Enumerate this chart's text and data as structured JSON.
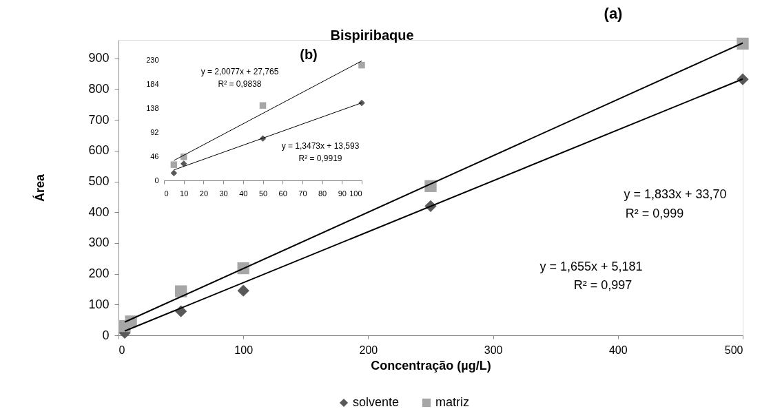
{
  "chart_data": [
    {
      "type": "scatter",
      "title": "Bispiribaque",
      "xlabel": "Concentração (µg/L)",
      "ylabel": "Área",
      "xlim": [
        0,
        500
      ],
      "xticks": [
        0,
        100,
        200,
        300,
        400,
        500
      ],
      "ylim": [
        0,
        960
      ],
      "yticks": [
        0,
        100,
        200,
        300,
        400,
        500,
        600,
        700,
        800,
        900
      ],
      "grid": false,
      "legend": "bottom",
      "annotations": [
        "(a)",
        "y = 1,833x + 33,70",
        "R² = 0,999",
        "y = 1,655x + 5,181",
        "R² = 0,997"
      ],
      "series": [
        {
          "name": "solvente",
          "color": "#595959",
          "marker": "diamond",
          "x": [
            5,
            10,
            50,
            100,
            250,
            500
          ],
          "values": [
            8,
            null,
            78,
            145,
            420,
            832
          ]
        },
        {
          "name": "matriz",
          "color": "#a6a6a6",
          "marker": "square",
          "x": [
            5,
            10,
            50,
            100,
            250,
            500
          ],
          "values": [
            30,
            45,
            143,
            218,
            485,
            948
          ]
        },
        {
          "type": "line",
          "color": "#000000",
          "x": [
            5,
            500
          ],
          "values": [
            14,
            833
          ]
        },
        {
          "type": "line",
          "color": "#000000",
          "x": [
            5,
            500
          ],
          "values": [
            43,
            950
          ]
        }
      ]
    },
    {
      "type": "scatter",
      "xlim": [
        0,
        100
      ],
      "xticks": [
        0,
        10,
        20,
        30,
        40,
        50,
        60,
        70,
        80,
        90,
        100
      ],
      "ylim": [
        0,
        230
      ],
      "yticks": [
        0,
        46,
        92,
        138,
        184,
        230
      ],
      "grid": false,
      "annotations": [
        "(b)",
        "y = 2,0077x + 27,765",
        "R² = 0,9838",
        "y = 1,3473x + 13,593",
        "R² = 0,9919"
      ],
      "series": [
        {
          "color": "#595959",
          "marker": "diamond",
          "x": [
            5,
            10,
            50,
            100
          ],
          "values": [
            14,
            32,
            80,
            148
          ]
        },
        {
          "color": "#a6a6a6",
          "marker": "square",
          "x": [
            5,
            10,
            50,
            100
          ],
          "values": [
            30,
            45,
            143,
            220
          ]
        },
        {
          "type": "line",
          "color": "#000000",
          "x": [
            5,
            100
          ],
          "values": [
            20,
            148
          ]
        },
        {
          "type": "line",
          "color": "#000000",
          "x": [
            5,
            100
          ],
          "values": [
            38,
            228
          ]
        }
      ]
    }
  ]
}
